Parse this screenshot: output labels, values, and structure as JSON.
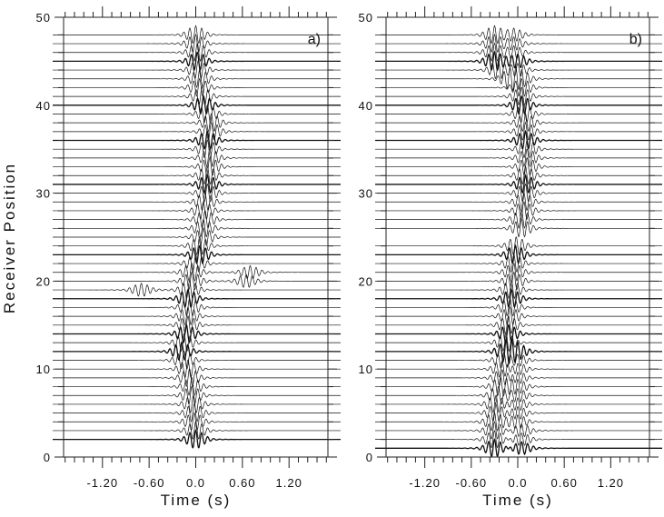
{
  "chart_data": {
    "type": "line",
    "ylabel": "Receiver Position",
    "xlabel": "Time (s)",
    "xlim": [
      -1.7,
      1.7
    ],
    "ylim": [
      0,
      50
    ],
    "x_ticks": [
      "-1.20",
      "-0.60",
      "0.0",
      "0.60",
      "1.20"
    ],
    "x_tick_values": [
      -1.2,
      -0.6,
      0.0,
      0.6,
      1.2
    ],
    "y_ticks": [
      "0",
      "10",
      "20",
      "30",
      "40",
      "50"
    ],
    "y_tick_values": [
      0,
      10,
      20,
      30,
      40,
      50
    ],
    "panels": [
      {
        "label": "a)",
        "xlabel": "Time (s)",
        "traces": [
          [
            2,
            [
              0.0
            ]
          ],
          [
            3,
            [
              0.0
            ]
          ],
          [
            4,
            [
              -0.02
            ]
          ],
          [
            5,
            [
              -0.02
            ]
          ],
          [
            6,
            [
              -0.03
            ]
          ],
          [
            7,
            [
              -0.05
            ]
          ],
          [
            8,
            [
              -0.05
            ]
          ],
          [
            9,
            [
              -0.08
            ]
          ],
          [
            10,
            [
              -0.1
            ]
          ],
          [
            11,
            [
              -0.15
            ]
          ],
          [
            12,
            [
              -0.18
            ]
          ],
          [
            13,
            [
              -0.15
            ]
          ],
          [
            14,
            [
              -0.12
            ]
          ],
          [
            15,
            [
              -0.1
            ]
          ],
          [
            16,
            [
              -0.1
            ]
          ],
          [
            17,
            [
              -0.08
            ]
          ],
          [
            18,
            [
              -0.1
            ]
          ],
          [
            19,
            [
              -0.08,
              -0.7
            ]
          ],
          [
            20,
            [
              -0.05,
              0.65
            ]
          ],
          [
            21,
            [
              -0.05,
              0.7
            ]
          ],
          [
            22,
            [
              0.0
            ]
          ],
          [
            23,
            [
              0.05
            ]
          ],
          [
            24,
            [
              0.05
            ]
          ],
          [
            25,
            [
              0.1
            ]
          ],
          [
            26,
            [
              0.1
            ]
          ],
          [
            27,
            [
              0.12
            ]
          ],
          [
            28,
            [
              0.1
            ]
          ],
          [
            29,
            [
              0.12
            ]
          ],
          [
            30,
            [
              0.15
            ]
          ],
          [
            31,
            [
              0.15
            ]
          ],
          [
            32,
            [
              0.15
            ]
          ],
          [
            33,
            [
              0.18
            ]
          ],
          [
            34,
            [
              0.18
            ]
          ],
          [
            35,
            [
              0.15
            ]
          ],
          [
            36,
            [
              0.15
            ]
          ],
          [
            37,
            [
              0.2
            ]
          ],
          [
            38,
            [
              0.2
            ]
          ],
          [
            39,
            [
              0.15
            ]
          ],
          [
            40,
            [
              0.1
            ]
          ],
          [
            41,
            [
              0.08
            ]
          ],
          [
            42,
            [
              0.05
            ]
          ],
          [
            43,
            [
              0.05
            ]
          ],
          [
            44,
            [
              0.03
            ]
          ],
          [
            45,
            [
              0.02
            ]
          ],
          [
            46,
            [
              0.02
            ]
          ],
          [
            47,
            [
              0.0
            ]
          ],
          [
            48,
            [
              0.0
            ]
          ]
        ],
        "bold_positions": [
          2,
          12,
          14,
          18,
          23,
          31,
          36,
          40,
          45
        ]
      },
      {
        "label": "b)",
        "xlabel": "Time (s)",
        "traces": [
          [
            1,
            [
              -0.3,
              0.05
            ]
          ],
          [
            2,
            [
              -0.3,
              0.05
            ]
          ],
          [
            3,
            [
              -0.3,
              0.05
            ]
          ],
          [
            4,
            [
              -0.3,
              0.0
            ]
          ],
          [
            5,
            [
              -0.28,
              0.0
            ]
          ],
          [
            6,
            [
              -0.28,
              0.0
            ]
          ],
          [
            7,
            [
              -0.25,
              0.0
            ]
          ],
          [
            8,
            [
              -0.22,
              0.0
            ]
          ],
          [
            9,
            [
              -0.2,
              0.0
            ]
          ],
          [
            10,
            [
              -0.2,
              0.0
            ]
          ],
          [
            11,
            [
              -0.18,
              0.0
            ]
          ],
          [
            12,
            [
              -0.15,
              0.0
            ]
          ],
          [
            13,
            [
              -0.15
            ]
          ],
          [
            14,
            [
              -0.12
            ]
          ],
          [
            15,
            [
              -0.12
            ]
          ],
          [
            16,
            [
              -0.1
            ]
          ],
          [
            17,
            [
              -0.1
            ]
          ],
          [
            18,
            [
              -0.08
            ]
          ],
          [
            19,
            [
              -0.08
            ]
          ],
          [
            20,
            [
              -0.05
            ]
          ],
          [
            21,
            [
              -0.05
            ]
          ],
          [
            22,
            [
              -0.05
            ]
          ],
          [
            23,
            [
              -0.03
            ]
          ],
          [
            24,
            [
              -0.02
            ]
          ],
          [
            26,
            [
              0.05
            ]
          ],
          [
            27,
            [
              0.05
            ]
          ],
          [
            28,
            [
              0.08
            ]
          ],
          [
            29,
            [
              0.08
            ]
          ],
          [
            30,
            [
              0.1
            ]
          ],
          [
            31,
            [
              0.1
            ]
          ],
          [
            32,
            [
              0.1
            ]
          ],
          [
            33,
            [
              0.12
            ]
          ],
          [
            34,
            [
              0.12
            ]
          ],
          [
            35,
            [
              0.12
            ]
          ],
          [
            36,
            [
              0.1
            ]
          ],
          [
            37,
            [
              0.1
            ]
          ],
          [
            38,
            [
              0.1
            ]
          ],
          [
            39,
            [
              0.08
            ]
          ],
          [
            40,
            [
              0.05
            ]
          ],
          [
            41,
            [
              0.05
            ]
          ],
          [
            42,
            [
              0.05
            ]
          ],
          [
            43,
            [
              -0.1,
              0.05
            ]
          ],
          [
            44,
            [
              -0.25,
              0.0
            ]
          ],
          [
            45,
            [
              -0.3,
              0.0
            ]
          ],
          [
            46,
            [
              -0.3,
              -0.05
            ]
          ],
          [
            47,
            [
              -0.3,
              -0.05
            ]
          ],
          [
            48,
            [
              -0.3,
              -0.05
            ]
          ]
        ],
        "bold_positions": [
          1,
          12,
          14,
          18,
          23,
          31,
          36,
          40,
          45
        ]
      }
    ]
  }
}
